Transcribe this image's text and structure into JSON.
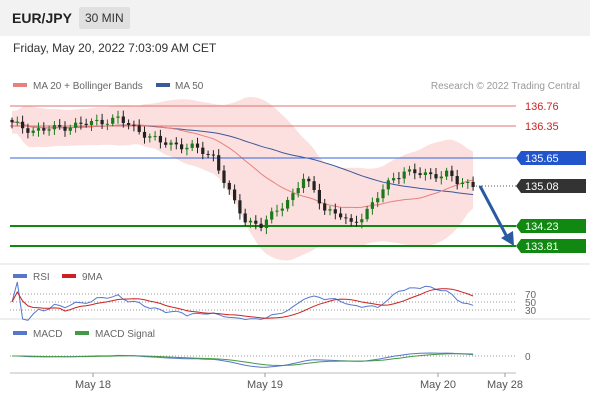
{
  "header": {
    "symbol": "EUR/JPY",
    "interval": "30 MIN",
    "timestamp": "Friday, May 20, 2022 7:03:09 AM CET"
  },
  "legend": {
    "ma20_bb": "MA 20 + Bollinger Bands",
    "ma50": "MA 50",
    "copyright": "Research © 2022 Trading Central",
    "rsi": "RSI",
    "rsi_ma": "9MA",
    "macd": "MACD",
    "macd_signal": "MACD Signal"
  },
  "colors": {
    "up": "#1a7a1a",
    "down": "#222222",
    "ma20": "#e88080",
    "ma50": "#3a5a9a",
    "bb_fill": "#fbd9d9",
    "resistance": "#cc2222",
    "pivot": "#2255cc",
    "support": "#118811",
    "current": "#333333",
    "rsi": "#5577cc",
    "rsi_ma": "#cc2222",
    "macd": "#5577cc",
    "macd_signal": "#449944"
  },
  "chart_data": {
    "type": "candlestick",
    "y_range": [
      133.6,
      137.0
    ],
    "x_labels": [
      "May 18",
      "May 19",
      "May 20",
      "May 28"
    ],
    "levels": [
      {
        "kind": "resistance",
        "value": 136.76,
        "label": "136.76"
      },
      {
        "kind": "resistance",
        "value": 136.35,
        "label": "136.35"
      },
      {
        "kind": "pivot",
        "value": 135.65,
        "label": "135.65"
      },
      {
        "kind": "support",
        "value": 134.23,
        "label": "134.23"
      },
      {
        "kind": "support",
        "value": 133.81,
        "label": "133.81"
      }
    ],
    "current_price": {
      "value": 135.08,
      "label": "135.08"
    },
    "forecast_target": 133.81,
    "close_keypoints": [
      [
        0,
        136.4
      ],
      [
        4,
        136.25
      ],
      [
        8,
        136.3
      ],
      [
        14,
        136.4
      ],
      [
        20,
        136.5
      ],
      [
        24,
        136.25
      ],
      [
        28,
        136.0
      ],
      [
        34,
        135.9
      ],
      [
        38,
        135.7
      ],
      [
        40,
        135.2
      ],
      [
        42,
        134.7
      ],
      [
        44,
        134.35
      ],
      [
        47,
        134.25
      ],
      [
        50,
        134.55
      ],
      [
        53,
        134.9
      ],
      [
        55,
        135.25
      ],
      [
        57,
        134.95
      ],
      [
        59,
        134.6
      ],
      [
        62,
        134.45
      ],
      [
        64,
        134.25
      ],
      [
        66,
        134.45
      ],
      [
        68,
        134.7
      ],
      [
        70,
        135.0
      ],
      [
        72,
        135.25
      ],
      [
        74,
        135.4
      ],
      [
        76,
        135.35
      ],
      [
        79,
        135.3
      ],
      [
        82,
        135.35
      ],
      [
        84,
        135.15
      ],
      [
        87,
        135.1
      ]
    ],
    "rsi": {
      "levels": [
        70,
        50,
        30
      ]
    },
    "macd": {
      "levels": [
        0
      ]
    }
  }
}
